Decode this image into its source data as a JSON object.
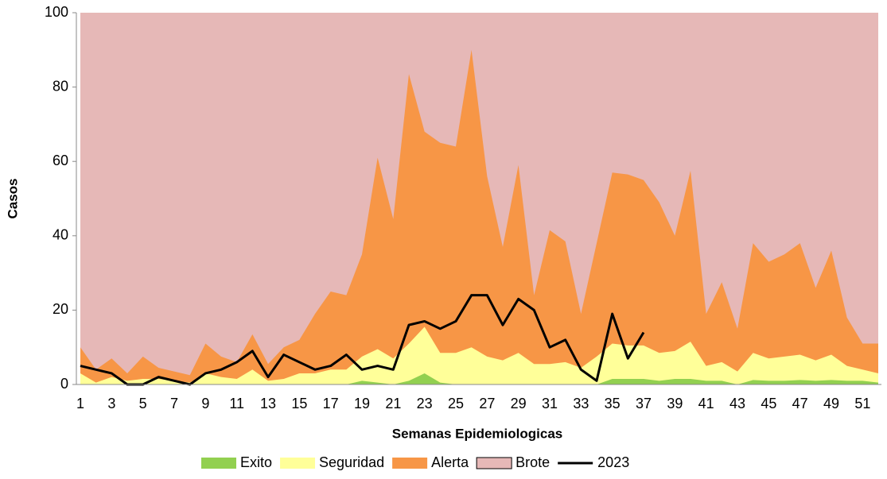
{
  "chart_data": {
    "type": "area",
    "ylabel": "Casos",
    "xlabel": "Semanas Epidemiologicas",
    "categories": [
      1,
      null,
      3,
      null,
      5,
      null,
      7,
      null,
      9,
      null,
      11,
      null,
      13,
      null,
      15,
      null,
      17,
      null,
      19,
      null,
      21,
      null,
      23,
      null,
      25,
      null,
      27,
      null,
      29,
      null,
      31,
      null,
      33,
      null,
      35,
      null,
      37,
      null,
      39,
      null,
      41,
      null,
      43,
      null,
      45,
      null,
      47,
      null,
      49,
      null,
      51,
      null
    ],
    "ylim": [
      0,
      100
    ],
    "yticks": [
      0,
      20,
      40,
      60,
      80,
      100
    ],
    "grid": false,
    "legend": "bottom",
    "series": [
      {
        "name": "Brote",
        "color": "#e6b8b7",
        "kind": "area",
        "values": [
          100,
          100,
          100,
          100,
          100,
          100,
          100,
          100,
          100,
          100,
          100,
          100,
          100,
          100,
          100,
          100,
          100,
          100,
          100,
          100,
          100,
          100,
          100,
          100,
          100,
          100,
          100,
          100,
          100,
          100,
          100,
          100,
          100,
          100,
          100,
          100,
          100,
          100,
          100,
          100,
          100,
          100,
          100,
          100,
          100,
          100,
          100,
          100,
          100,
          100,
          100,
          100
        ]
      },
      {
        "name": "Alerta",
        "color": "#f79646",
        "kind": "area",
        "values": [
          10,
          4,
          7,
          3,
          7.5,
          4.5,
          3.5,
          2.5,
          11,
          7.5,
          6,
          13.5,
          5.5,
          10,
          12,
          19,
          25,
          24,
          35,
          61,
          44.5,
          83.5,
          68,
          65,
          64,
          90,
          56,
          37,
          59,
          24,
          41.5,
          38.5,
          19,
          38,
          57,
          56.5,
          55,
          49,
          40,
          57.5,
          19,
          27.5,
          15,
          38,
          33,
          35,
          38,
          26,
          36,
          18,
          11,
          11
        ]
      },
      {
        "name": "Seguridad",
        "color": "#ffff99",
        "kind": "area",
        "values": [
          3,
          0.5,
          2,
          1,
          1.5,
          1.5,
          1,
          0.5,
          3,
          2,
          1.5,
          4,
          1,
          1.5,
          3,
          3,
          4,
          4,
          7.5,
          9.5,
          7,
          11,
          15.5,
          8.5,
          8.5,
          10,
          7.5,
          6.5,
          8.5,
          5.5,
          5.5,
          6,
          4.5,
          7.5,
          11,
          10.5,
          10.5,
          8.5,
          9,
          11.5,
          5,
          6,
          3.5,
          8.5,
          7,
          7.5,
          8,
          6.5,
          8,
          5,
          4,
          3
        ]
      },
      {
        "name": "Exito",
        "color": "#92d050",
        "kind": "area",
        "values": [
          0,
          0,
          0,
          0,
          0,
          0,
          0,
          0,
          0,
          0,
          0,
          0,
          0,
          0,
          0,
          0,
          0,
          0,
          1,
          0.5,
          0,
          1,
          3,
          0.5,
          0,
          0,
          0,
          0,
          0,
          0,
          0,
          0,
          0,
          0,
          1.5,
          1.5,
          1.5,
          1,
          1.5,
          1.5,
          1,
          1,
          0,
          1.2,
          1,
          1,
          1.2,
          1,
          1.2,
          1,
          1,
          0.5
        ]
      },
      {
        "name": "2023",
        "color": "#000000",
        "kind": "line",
        "values": [
          5,
          4,
          3,
          0,
          0,
          2,
          1,
          0,
          3,
          4,
          6,
          9,
          2,
          8,
          6,
          4,
          5,
          8,
          4,
          5,
          4,
          16,
          17,
          15,
          17,
          24,
          24,
          16,
          23,
          20,
          10,
          12,
          4,
          1,
          19,
          7,
          14,
          null,
          null,
          null,
          null,
          null,
          null,
          null,
          null,
          null,
          null,
          null,
          null,
          null,
          null,
          null
        ]
      }
    ],
    "legend_order": [
      3,
      2,
      1,
      0,
      4
    ]
  }
}
